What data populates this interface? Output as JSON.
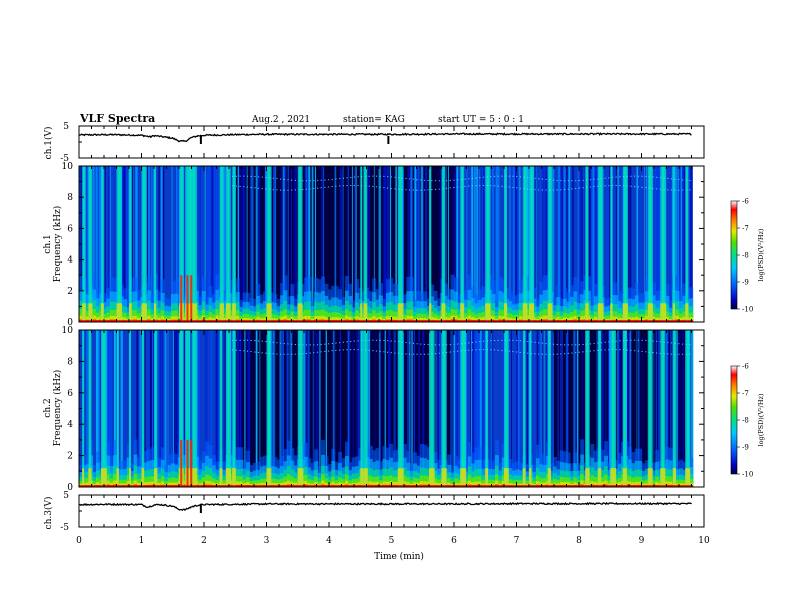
{
  "header": {
    "title": "VLF Spectra",
    "date": "Aug.2 , 2021",
    "station": "station= KAG",
    "start": "start  UT =  5 : 0 : 1"
  },
  "chart_data": [
    {
      "type": "line",
      "id": "ch1-voltage",
      "ylabel": "ch.1(V)",
      "ylim": [
        -5,
        5
      ],
      "yticks": [
        "5",
        "-5"
      ],
      "xlim": [
        0,
        10
      ],
      "series": [
        {
          "x": [
            0,
            0.5,
            1.0,
            1.15,
            1.2,
            1.5,
            1.6,
            1.7,
            1.8,
            1.9,
            2.0,
            2.5,
            3.0,
            4.0,
            5.0,
            6.0,
            7.0,
            8.0,
            9.0,
            9.8
          ],
          "y": [
            2.2,
            2.3,
            2.1,
            1.6,
            2.0,
            1.2,
            0.3,
            0.2,
            1.4,
            1.9,
            2.1,
            2.3,
            2.4,
            2.4,
            2.4,
            2.5,
            2.5,
            2.5,
            2.5,
            2.5
          ]
        }
      ]
    },
    {
      "type": "heatmap",
      "id": "ch1-spectrogram",
      "ylabel": "ch.1\nFrequency (kHz)",
      "xlim": [
        0,
        10
      ],
      "ylim": [
        0,
        10
      ],
      "xticks": [
        "0",
        "1",
        "2",
        "3",
        "4",
        "5",
        "6",
        "7",
        "8",
        "9",
        "10"
      ],
      "yticks": [
        "0",
        "2",
        "4",
        "6",
        "8",
        "10"
      ],
      "data_end_min": 9.82,
      "color_range": [
        -10,
        -6
      ],
      "colorbar_label": "log(PSD)(V²/Hz)",
      "colorbar_ticks": [
        "-6",
        "-7",
        "-8",
        "-9",
        "-10"
      ],
      "wideband_bursts_min": [
        0.05,
        0.15,
        0.35,
        0.6,
        0.8,
        1.0,
        1.2,
        1.6,
        1.7,
        1.75,
        1.8,
        2.25,
        2.35,
        2.45,
        3.0,
        3.5,
        4.5,
        4.55,
        5.1,
        5.6,
        5.8,
        6.1,
        6.5,
        6.8,
        7.1,
        7.2,
        7.5,
        8.1,
        8.3,
        8.5,
        8.7,
        9.1,
        9.3,
        9.5,
        9.7
      ],
      "background_min": [
        [
          0.0,
          2.45,
          "mixed"
        ],
        [
          2.45,
          4.45,
          "quiet"
        ],
        [
          4.45,
          6.0,
          "quiet"
        ],
        [
          6.0,
          7.6,
          "mixed"
        ],
        [
          7.6,
          9.82,
          "mixed"
        ]
      ]
    },
    {
      "type": "heatmap",
      "id": "ch2-spectrogram",
      "ylabel": "ch.2\nFrequency (kHz)",
      "xlim": [
        0,
        10
      ],
      "ylim": [
        0,
        10
      ],
      "xticks": [
        "0",
        "1",
        "2",
        "3",
        "4",
        "5",
        "6",
        "7",
        "8",
        "9",
        "10"
      ],
      "yticks": [
        "0",
        "2",
        "4",
        "6",
        "8",
        "10"
      ],
      "data_end_min": 9.82,
      "color_range": [
        -10,
        -6
      ],
      "colorbar_label": "log(PSD)(V²/Hz)",
      "colorbar_ticks": [
        "-6",
        "-7",
        "-8",
        "-9",
        "-10"
      ],
      "wideband_bursts_min": [
        0.05,
        0.15,
        0.35,
        0.6,
        0.8,
        1.0,
        1.2,
        1.6,
        1.7,
        1.75,
        1.8,
        2.25,
        2.35,
        2.45,
        3.0,
        3.5,
        4.5,
        4.55,
        5.1,
        5.6,
        5.8,
        6.1,
        6.5,
        6.8,
        7.1,
        7.2,
        7.5,
        8.1,
        8.3,
        8.5,
        8.7,
        9.1,
        9.3,
        9.5,
        9.7
      ],
      "background_min": [
        [
          0.0,
          2.45,
          "mixed"
        ],
        [
          2.45,
          4.45,
          "quiet"
        ],
        [
          4.45,
          6.0,
          "quiet"
        ],
        [
          6.0,
          7.6,
          "mixed"
        ],
        [
          7.6,
          9.82,
          "quiet"
        ]
      ]
    },
    {
      "type": "line",
      "id": "ch3-voltage",
      "ylabel": "ch.3(V)",
      "ylim": [
        -5,
        5
      ],
      "yticks": [
        "5",
        "-5"
      ],
      "xlim": [
        0,
        10
      ],
      "xticks": [
        "0",
        "1",
        "2",
        "3",
        "4",
        "5",
        "6",
        "7",
        "8",
        "9",
        "10"
      ],
      "xlabel": "Time (min)",
      "series": [
        {
          "x": [
            0,
            0.5,
            1.0,
            1.1,
            1.2,
            1.3,
            1.5,
            1.6,
            1.7,
            1.8,
            1.9,
            2.0,
            2.5,
            3.0,
            4.0,
            5.0,
            6.0,
            7.0,
            8.0,
            9.0,
            9.8
          ],
          "y": [
            2.0,
            2.1,
            2.0,
            1.2,
            1.9,
            2.0,
            1.5,
            0.5,
            0.4,
            1.3,
            1.8,
            2.0,
            2.1,
            2.2,
            2.2,
            2.2,
            2.2,
            2.3,
            2.3,
            2.3,
            2.3
          ]
        }
      ]
    }
  ]
}
